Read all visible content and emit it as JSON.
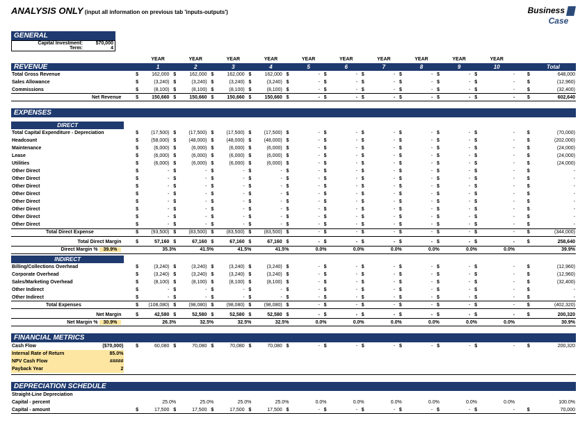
{
  "title": "ANALYSIS ONLY",
  "subtitle": "(input all information on previous tab 'inputs-outputs')",
  "logo": {
    "line1": "Business",
    "line2": "Case"
  },
  "sections": {
    "general": "GENERAL",
    "revenue": "REVENUE",
    "expenses": "EXPENSES",
    "direct": "DIRECT",
    "indirect": "INDIRECT",
    "financial": "FINANCIAL METRICS",
    "depreciation": "DEPRECIATION SCHEDULE"
  },
  "general": {
    "capital_label": "Capital Investment:",
    "capital_value": "$70,000",
    "term_label": "Term:",
    "term_value": "4"
  },
  "year_row": {
    "prefix": "YEAR",
    "years": [
      "1",
      "2",
      "3",
      "4",
      "5",
      "6",
      "7",
      "8",
      "9",
      "10"
    ],
    "total": "Total"
  },
  "revenue": {
    "rows": [
      {
        "label": "Total Gross Revenue",
        "y": [
          "162,000",
          "162,000",
          "162,000",
          "162,000",
          "-",
          "-",
          "-",
          "-",
          "-",
          "-"
        ],
        "total": "648,000"
      },
      {
        "label": "Sales Allowance",
        "y": [
          "(3,240)",
          "(3,240)",
          "(3,240)",
          "(3,240)",
          "-",
          "-",
          "-",
          "-",
          "-",
          "-"
        ],
        "total": "(12,960)"
      },
      {
        "label": "Commissions",
        "y": [
          "(8,100)",
          "(8,100)",
          "(8,100)",
          "(8,100)",
          "-",
          "-",
          "-",
          "-",
          "-",
          "-"
        ],
        "total": "(32,400)"
      }
    ],
    "net": {
      "label": "Net Revenue",
      "y": [
        "150,660",
        "150,660",
        "150,660",
        "150,660",
        "-",
        "-",
        "-",
        "-",
        "-",
        "-"
      ],
      "total": "602,640"
    }
  },
  "direct": {
    "rows": [
      {
        "label": "Total Capital Expenditure - Depreciation",
        "y": [
          "(17,500)",
          "(17,500)",
          "(17,500)",
          "(17,500)",
          "-",
          "-",
          "-",
          "-",
          "-",
          "-"
        ],
        "total": "(70,000)"
      },
      {
        "label": "Headcount",
        "y": [
          "(58,000)",
          "(48,000)",
          "(48,000)",
          "(48,000)",
          "-",
          "-",
          "-",
          "-",
          "-",
          "-"
        ],
        "total": "(202,000)"
      },
      {
        "label": "Maintenance",
        "y": [
          "(6,000)",
          "(6,000)",
          "(6,000)",
          "(6,000)",
          "-",
          "-",
          "-",
          "-",
          "-",
          "-"
        ],
        "total": "(24,000)"
      },
      {
        "label": "Lease",
        "y": [
          "(6,000)",
          "(6,000)",
          "(6,000)",
          "(6,000)",
          "-",
          "-",
          "-",
          "-",
          "-",
          "-"
        ],
        "total": "(24,000)"
      },
      {
        "label": "Utilities",
        "y": [
          "(6,000)",
          "(6,000)",
          "(6,000)",
          "(6,000)",
          "-",
          "-",
          "-",
          "-",
          "-",
          "-"
        ],
        "total": "(24,000)"
      },
      {
        "label": "Other Direct",
        "y": [
          "-",
          "-",
          "-",
          "-",
          "-",
          "-",
          "-",
          "-",
          "-",
          "-"
        ],
        "total": "-"
      },
      {
        "label": "Other Direct",
        "y": [
          "-",
          "-",
          "-",
          "-",
          "-",
          "-",
          "-",
          "-",
          "-",
          "-"
        ],
        "total": "-"
      },
      {
        "label": "Other Direct",
        "y": [
          "-",
          "-",
          "-",
          "-",
          "-",
          "-",
          "-",
          "-",
          "-",
          "-"
        ],
        "total": "-"
      },
      {
        "label": "Other Direct",
        "y": [
          "-",
          "-",
          "-",
          "-",
          "-",
          "-",
          "-",
          "-",
          "-",
          "-"
        ],
        "total": "-"
      },
      {
        "label": "Other Direct",
        "y": [
          "-",
          "-",
          "-",
          "-",
          "-",
          "-",
          "-",
          "-",
          "-",
          "-"
        ],
        "total": "-"
      },
      {
        "label": "Other Direct",
        "y": [
          "-",
          "-",
          "-",
          "-",
          "-",
          "-",
          "-",
          "-",
          "-",
          "-"
        ],
        "total": "-"
      },
      {
        "label": "Other Direct",
        "y": [
          "-",
          "-",
          "-",
          "-",
          "-",
          "-",
          "-",
          "-",
          "-",
          "-"
        ],
        "total": "-"
      },
      {
        "label": "Other Direct",
        "y": [
          "-",
          "-",
          "-",
          "-",
          "-",
          "-",
          "-",
          "-",
          "-",
          "-"
        ],
        "total": "-"
      }
    ],
    "total_expense": {
      "label": "Total Direct Expense",
      "y": [
        "(93,500)",
        "(83,500)",
        "(83,500)",
        "(83,500)",
        "-",
        "-",
        "-",
        "-",
        "-",
        "-"
      ],
      "total": "(344,000)"
    },
    "margin": {
      "label": "Total Direct Margin",
      "y": [
        "57,160",
        "67,160",
        "67,160",
        "67,160",
        "-",
        "-",
        "-",
        "-",
        "-",
        "-"
      ],
      "total": "258,640"
    },
    "margin_pct": {
      "label": "Direct Margin %",
      "overall": "39.9%",
      "y": [
        "35.3%",
        "41.5%",
        "41.5%",
        "41.5%",
        "0.0%",
        "0.0%",
        "0.0%",
        "0.0%",
        "0.0%",
        "0.0%"
      ],
      "total": "39.9%"
    }
  },
  "indirect": {
    "rows": [
      {
        "label": "Billing/Collections Overhead",
        "y": [
          "(3,240)",
          "(3,240)",
          "(3,240)",
          "(3,240)",
          "-",
          "-",
          "-",
          "-",
          "-",
          "-"
        ],
        "total": "(12,960)"
      },
      {
        "label": "Corporate Overhead",
        "y": [
          "(3,240)",
          "(3,240)",
          "(3,240)",
          "(3,240)",
          "-",
          "-",
          "-",
          "-",
          "-",
          "-"
        ],
        "total": "(12,960)"
      },
      {
        "label": "Sales/Marketing Overhead",
        "y": [
          "(8,100)",
          "(8,100)",
          "(8,100)",
          "(8,100)",
          "-",
          "-",
          "-",
          "-",
          "-",
          "-"
        ],
        "total": "(32,400)"
      },
      {
        "label": "Other Indirect",
        "y": [
          "-",
          "-",
          "-",
          "-",
          "-",
          "-",
          "-",
          "-",
          "-",
          "-"
        ],
        "total": "-"
      },
      {
        "label": "Other Indirect",
        "y": [
          "-",
          "-",
          "-",
          "-",
          "-",
          "-",
          "-",
          "-",
          "-",
          "-"
        ],
        "total": "-"
      }
    ],
    "total_expense": {
      "label": "Total Expenses",
      "y": [
        "(108,080)",
        "(98,080)",
        "(98,080)",
        "(98,080)",
        "-",
        "-",
        "-",
        "-",
        "-",
        "-"
      ],
      "total": "(402,320)"
    },
    "margin": {
      "label": "Net Margin",
      "y": [
        "42,580",
        "52,580",
        "52,580",
        "52,580",
        "-",
        "-",
        "-",
        "-",
        "-",
        "-"
      ],
      "total": "200,320"
    },
    "margin_pct": {
      "label": "Net Margin %",
      "overall": "30.9%",
      "y": [
        "26.3%",
        "32.5%",
        "32.5%",
        "32.5%",
        "0.0%",
        "0.0%",
        "0.0%",
        "0.0%",
        "0.0%",
        "0.0%"
      ],
      "total": "30.9%"
    }
  },
  "financial": {
    "cashflow": {
      "label": "Cash Flow",
      "initial": "($70,000)",
      "y": [
        "60,080",
        "70,080",
        "70,080",
        "70,080",
        "-",
        "-",
        "-",
        "-",
        "-",
        "-"
      ],
      "total": "200,320"
    },
    "irr": {
      "label": "Internal Rate of Return",
      "value": "85.0%"
    },
    "npv": {
      "label": "NPV Cash Flow",
      "value": "#####"
    },
    "payback": {
      "label": "Payback Year",
      "value": "2"
    }
  },
  "depreciation": {
    "straight": {
      "label": "Straight-Line Depreciation"
    },
    "pct": {
      "label": "Capital - percent",
      "y": [
        "25.0%",
        "25.0%",
        "25.0%",
        "25.0%",
        "0.0%",
        "0.0%",
        "0.0%",
        "0.0%",
        "0.0%",
        "0.0%"
      ],
      "total": "100.0%"
    },
    "amt": {
      "label": "Capital - amount",
      "y": [
        "17,500",
        "17,500",
        "17,500",
        "17,500",
        "-",
        "-",
        "-",
        "-",
        "-",
        "-"
      ],
      "total": "70,000"
    }
  },
  "colors": {
    "header_bg": "#1e3a6e",
    "highlight_bg": "#fce6a2"
  }
}
